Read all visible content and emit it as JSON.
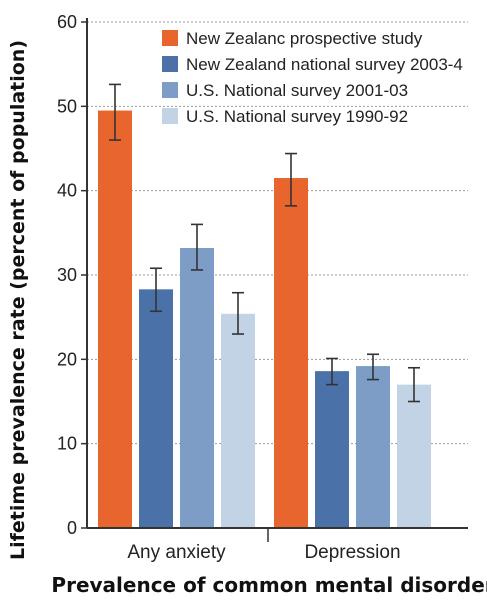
{
  "chart_data": {
    "type": "bar",
    "xlabel": "Prevalence of common mental disorders",
    "ylabel": "Lifetime prevalence rate (percent of population)",
    "ylim": [
      0,
      60
    ],
    "yticks": [
      0,
      10,
      20,
      30,
      40,
      50,
      60
    ],
    "grid": "horizontal dotted",
    "legend_position": "top-right",
    "categories": [
      "Any anxiety",
      "Depression"
    ],
    "series": [
      {
        "name": "New Zealanc prospective study",
        "color": "#e8662e",
        "values": [
          49.5,
          41.5
        ],
        "error": [
          [
            46,
            52.6
          ],
          [
            38.2,
            44.4
          ]
        ]
      },
      {
        "name": "New Zealand national survey 2003-4",
        "color": "#4a72a8",
        "values": [
          28.3,
          18.6
        ],
        "error": [
          [
            25.7,
            30.8
          ],
          [
            17.0,
            20.1
          ]
        ]
      },
      {
        "name": "U.S. National survey 2001-03",
        "color": "#7d9dc7",
        "values": [
          33.2,
          19.2
        ],
        "error": [
          [
            30.6,
            36.0
          ],
          [
            17.6,
            20.6
          ]
        ]
      },
      {
        "name": "U.S. National survey 1990-92",
        "color": "#c3d3e6",
        "values": [
          25.4,
          17.0
        ],
        "error": [
          [
            23.0,
            27.9
          ],
          [
            15.0,
            19.0
          ]
        ]
      }
    ]
  }
}
